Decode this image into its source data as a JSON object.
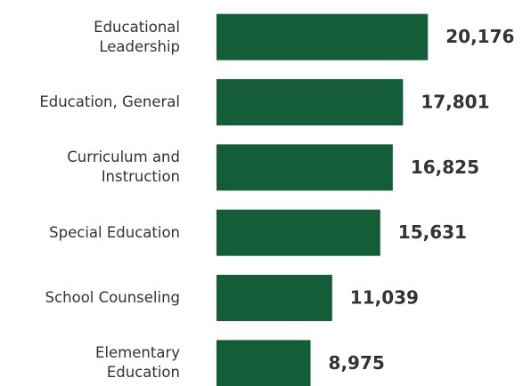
{
  "chart_data": {
    "type": "bar",
    "orientation": "horizontal",
    "categories": [
      "Educational\nLeadership",
      "Education, General",
      "Curriculum and\nInstruction",
      "Special Education",
      "School Counseling",
      "Elementary\nEducation"
    ],
    "values": [
      20176,
      17801,
      16825,
      15631,
      11039,
      8975
    ],
    "value_labels": [
      "20,176",
      "17,801",
      "16,825",
      "15,631",
      "11,039",
      "8,975"
    ],
    "color": "#135e38",
    "xlim": [
      0,
      29000
    ]
  }
}
